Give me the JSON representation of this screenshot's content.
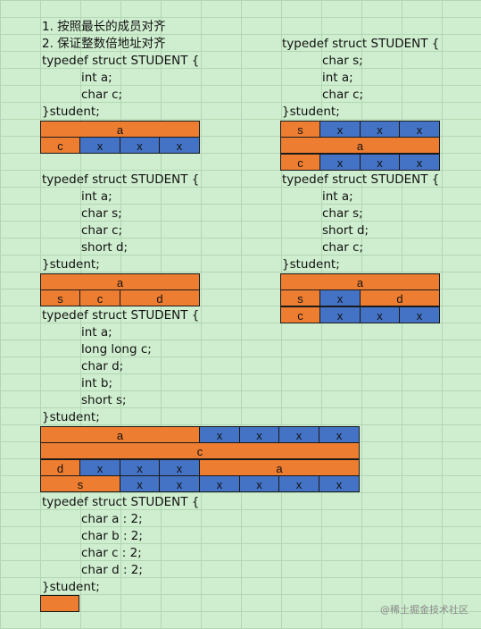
{
  "rules": [
    "1. 按照最长的成员对齐",
    "2. 保证整数倍地址对齐"
  ],
  "struct_open": "typedef struct STUDENT {",
  "struct_close": "}student;",
  "examples": [
    {
      "members": [
        "int a;",
        "char c;"
      ]
    },
    {
      "members": [
        "char s;",
        "int a;",
        "char c;"
      ]
    },
    {
      "members": [
        "int a;",
        "char s;",
        "char c;",
        "short d;"
      ]
    },
    {
      "members": [
        "int a;",
        "char s;",
        "short d;",
        "char c;"
      ]
    },
    {
      "members": [
        "int a;",
        "long long c;",
        "char d;",
        "int b;",
        "short s;"
      ]
    },
    {
      "members": [
        "char a : 2;",
        "char b : 2;",
        "char c : 2;",
        "char d : 2;"
      ]
    }
  ],
  "layouts": [
    {
      "rows": [
        [
          "a"
        ],
        [
          "c",
          "x",
          "x",
          "x"
        ]
      ]
    },
    {
      "rows": [
        [
          "s",
          "x",
          "x",
          "x"
        ],
        [
          "a"
        ],
        [
          "c",
          "x",
          "x",
          "x"
        ]
      ]
    },
    {
      "rows": [
        [
          "a"
        ],
        [
          "s",
          "c",
          "d"
        ]
      ]
    },
    {
      "rows": [
        [
          "a"
        ],
        [
          "s",
          "x",
          "d"
        ],
        [
          "c",
          "x",
          "x",
          "x"
        ]
      ]
    },
    {
      "rows": [
        [
          "a",
          "x",
          "x",
          "x",
          "x"
        ],
        [
          "c"
        ],
        [
          "d",
          "x",
          "x",
          "x",
          "a"
        ],
        [
          "s",
          "x",
          "x",
          "x",
          "x",
          "x",
          "x"
        ]
      ]
    },
    {
      "rows": [
        [
          ""
        ]
      ]
    }
  ],
  "colors": {
    "filled": "#ed7d31",
    "padding": "#4472c4",
    "grid": "#b2d6b2",
    "background": "#cfeecf"
  },
  "watermark": "@稀土掘金技术社区"
}
